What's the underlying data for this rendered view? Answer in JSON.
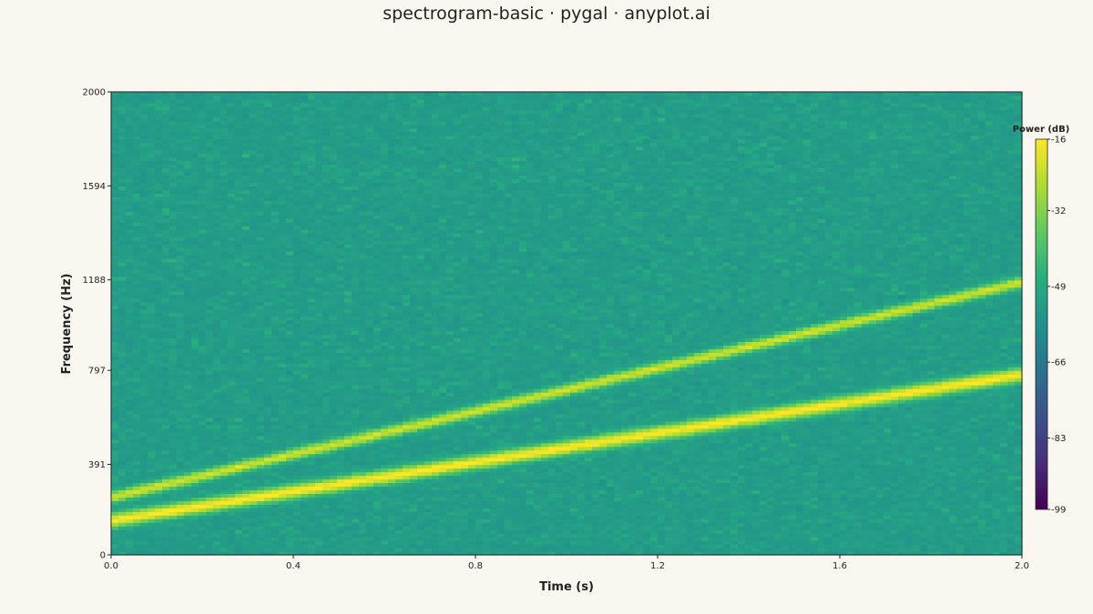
{
  "chart_data": {
    "type": "heatmap",
    "title": "spectrogram-basic · pygal · anyplot.ai",
    "xlabel": "Time (s)",
    "ylabel": "Frequency (Hz)",
    "x_ticks": [
      "0.0",
      "0.4",
      "0.8",
      "1.2",
      "1.6",
      "2.0"
    ],
    "y_ticks": [
      "0",
      "391",
      "797",
      "1188",
      "1594",
      "2000"
    ],
    "xlim": [
      0,
      2.0
    ],
    "ylim": [
      0,
      2000
    ],
    "colorbar": {
      "label": "Power (dB)",
      "ticks": [
        "-16",
        "-32",
        "-49",
        "-66",
        "-83",
        "-99"
      ],
      "range": [
        -99,
        -16
      ],
      "colormap": "viridis"
    },
    "background_power_db": -55,
    "series": [
      {
        "start_time": 0,
        "end_time": 2.0,
        "start_freq_hz": 150,
        "end_freq_hz": 780,
        "peak_power_db": -16
      },
      {
        "start_time": 0,
        "end_time": 2.0,
        "start_freq_hz": 250,
        "end_freq_hz": 1180,
        "peak_power_db": -22
      }
    ]
  }
}
